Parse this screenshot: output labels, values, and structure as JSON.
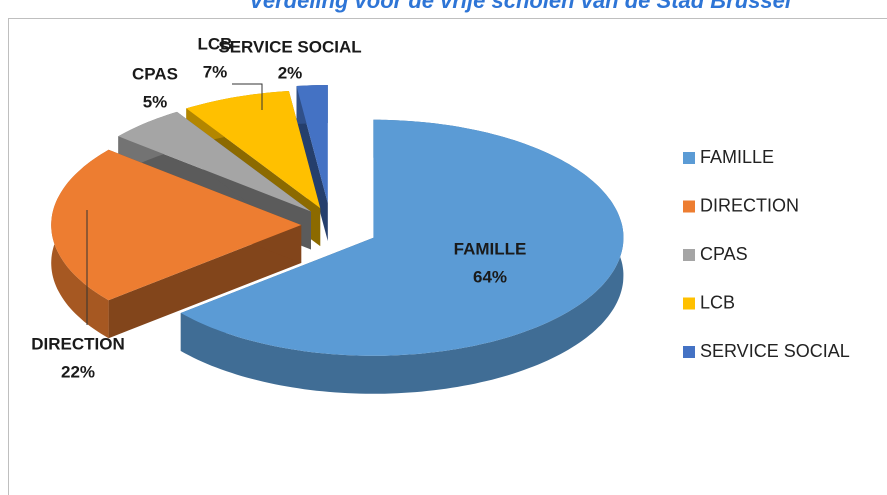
{
  "chart_data": {
    "type": "pie",
    "title": "Verdeling voor de vrije scholen van de Stad Brussel",
    "categories": [
      "FAMILLE",
      "DIRECTION",
      "CPAS",
      "LCB",
      "SERVICE SOCIAL"
    ],
    "values": [
      64,
      22,
      5,
      7,
      2
    ],
    "value_labels": [
      "64%",
      "22%",
      "5%",
      "7%",
      "2%"
    ],
    "colors": [
      "#5b9bd5",
      "#ed7d31",
      "#a5a5a5",
      "#ffc000",
      "#4472c4"
    ],
    "legend": "right"
  }
}
